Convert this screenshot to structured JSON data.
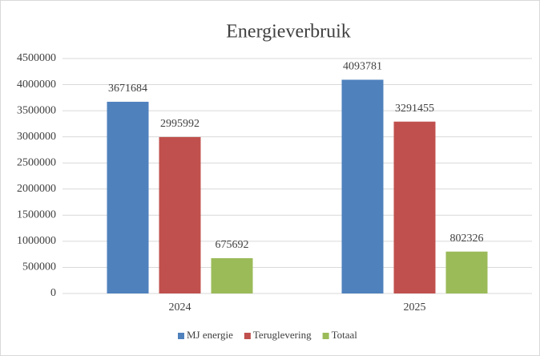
{
  "chart_data": {
    "type": "bar",
    "title": "Energieverbruik",
    "categories": [
      "2024",
      "2025"
    ],
    "series": [
      {
        "name": "MJ energie",
        "color": "#4f81bd",
        "values": [
          3671684,
          4093781
        ]
      },
      {
        "name": "Teruglevering",
        "color": "#c0504d",
        "values": [
          2995992,
          3291455
        ]
      },
      {
        "name": "Totaal",
        "color": "#9bbb59",
        "values": [
          675692,
          802326
        ]
      }
    ],
    "ylim": [
      0,
      4500000
    ],
    "yticks": [
      0,
      500000,
      1000000,
      1500000,
      2000000,
      2500000,
      3000000,
      3500000,
      4000000,
      4500000
    ],
    "grid": true,
    "legend": "bottom"
  }
}
